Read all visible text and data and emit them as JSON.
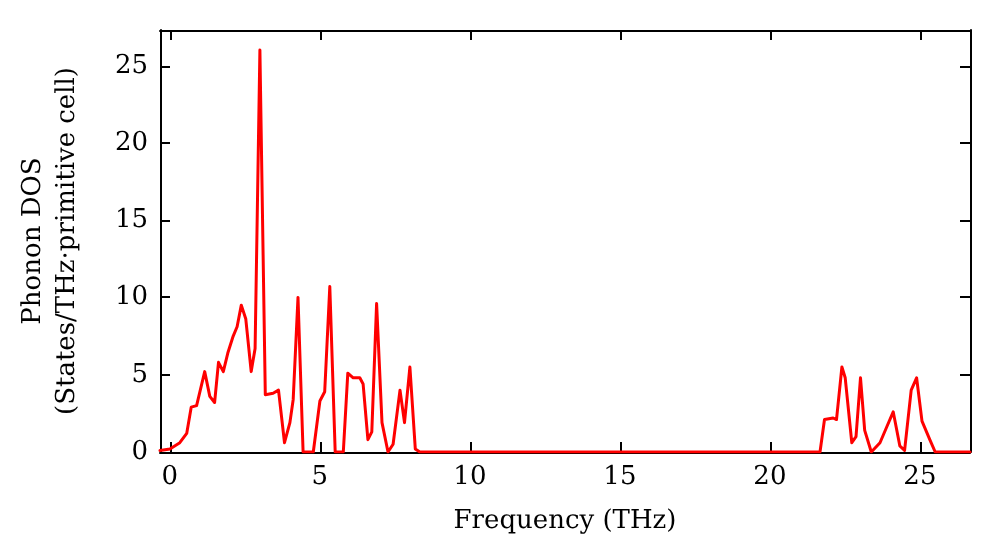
{
  "chart_data": {
    "type": "line",
    "xlabel": "Frequency (THz)",
    "ylabel": "Phonon DOS\n(States/THz·primitive cell)",
    "x": [
      -0.33,
      0,
      0.33,
      0.56,
      0.71,
      0.89,
      1.16,
      1.33,
      1.49,
      1.62,
      1.78,
      1.93,
      2.11,
      2.24,
      2.38,
      2.53,
      2.71,
      2.84,
      3.0,
      3.18,
      3.44,
      3.62,
      3.82,
      4.0,
      4.11,
      4.27,
      4.44,
      4.78,
      5.0,
      5.16,
      5.33,
      5.51,
      5.78,
      5.93,
      6.11,
      6.33,
      6.44,
      6.6,
      6.73,
      6.89,
      7.07,
      7.27,
      7.44,
      7.67,
      7.82,
      8.0,
      8.18,
      8.33,
      21.67,
      21.82,
      22.11,
      22.22,
      22.4,
      22.51,
      22.73,
      22.87,
      23.02,
      23.16,
      23.38,
      23.67,
      23.89,
      24.11,
      24.33,
      24.49,
      24.71,
      24.89,
      25.07,
      25.33,
      25.51,
      26.67
    ],
    "series": [
      {
        "color": "#ff0000",
        "values": [
          0.1,
          0.2,
          0.6,
          1.2,
          2.9,
          3.0,
          5.2,
          3.6,
          3.2,
          5.8,
          5.2,
          6.4,
          7.5,
          8.1,
          9.5,
          8.6,
          5.2,
          6.7,
          26.0,
          3.7,
          3.8,
          4.0,
          0.6,
          1.9,
          3.4,
          10.0,
          0,
          0,
          3.3,
          3.9,
          10.7,
          0,
          0,
          5.1,
          4.8,
          4.8,
          4.4,
          0.8,
          1.3,
          9.6,
          1.9,
          0,
          0.5,
          4.0,
          1.9,
          5.5,
          0.2,
          0,
          0,
          2.1,
          2.2,
          2.1,
          5.5,
          4.8,
          0.6,
          1.0,
          4.8,
          1.4,
          0,
          0.6,
          1.6,
          2.6,
          0.4,
          0.1,
          4.0,
          4.8,
          2.0,
          0.8,
          0,
          0
        ]
      }
    ],
    "xlim": [
      -0.33,
      26.67
    ],
    "xticks": [
      0,
      5,
      10,
      15,
      20,
      25
    ],
    "ylim": [
      0,
      27.3
    ],
    "yticks": [
      0,
      5,
      10,
      15,
      20,
      25
    ],
    "grid": false,
    "marker": "none",
    "line_style": "solid"
  }
}
